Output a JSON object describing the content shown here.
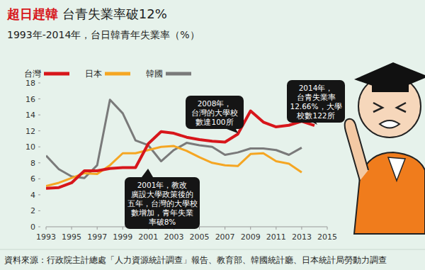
{
  "chart_data": {
    "type": "line",
    "title": "超日趕韓 台青失業率破12%",
    "subtitle": "1993年-2014年，台日韓青年失業率（%）",
    "x": [
      1993,
      1994,
      1995,
      1996,
      1997,
      1998,
      1999,
      2000,
      2001,
      2002,
      2003,
      2004,
      2005,
      2006,
      2007,
      2008,
      2009,
      2010,
      2011,
      2012,
      2013,
      2014
    ],
    "series": [
      {
        "name": "台灣",
        "color": "#d7161b",
        "values": [
          4.8,
          4.9,
          5.5,
          7.0,
          7.0,
          7.3,
          7.4,
          7.4,
          10.4,
          11.9,
          11.7,
          11.2,
          10.9,
          10.7,
          10.6,
          11.6,
          14.5,
          13.1,
          12.5,
          12.7,
          13.2,
          12.66
        ]
      },
      {
        "name": "日本",
        "color": "#f5a623",
        "values": [
          5.1,
          5.5,
          6.1,
          6.7,
          6.6,
          7.7,
          9.2,
          9.2,
          9.6,
          10.0,
          10.1,
          9.5,
          8.7,
          8.0,
          7.7,
          7.6,
          9.1,
          9.2,
          8.2,
          7.9,
          6.8,
          null
        ]
      },
      {
        "name": "韓國",
        "color": "#7a7a7a",
        "values": [
          8.9,
          7.2,
          6.3,
          6.1,
          7.7,
          15.9,
          14.2,
          10.8,
          10.2,
          8.2,
          9.6,
          10.5,
          10.2,
          10.0,
          9.0,
          9.3,
          9.8,
          9.8,
          9.6,
          9.0,
          9.9,
          null
        ]
      }
    ],
    "xlim": [
      1993,
      2015
    ],
    "xticks": [
      1993,
      1995,
      1997,
      1999,
      2001,
      2003,
      2005,
      2007,
      2009,
      2011,
      2013,
      2015
    ],
    "ylim": [
      0,
      18
    ],
    "yticks": [
      0,
      2,
      4,
      6,
      8,
      10,
      12,
      14,
      16,
      18
    ],
    "grid": false,
    "legend": "top-left",
    "line_style": "solid",
    "annotations": [
      [
        "2001年，教改",
        "廣設大學政策後的",
        "五年，台灣的大學校",
        "數增加，青年失業",
        "率破8%"
      ],
      [
        "2008年，",
        "台灣的大學校",
        "數達100所"
      ],
      [
        "2014年，",
        "台青失業率",
        "12.66%，大學",
        "校數122所"
      ]
    ],
    "source": "資料來源：行政院主計總處「人力資源統計調查」報告、教育部、韓國統計廳、日本統計局勞動力調查"
  }
}
